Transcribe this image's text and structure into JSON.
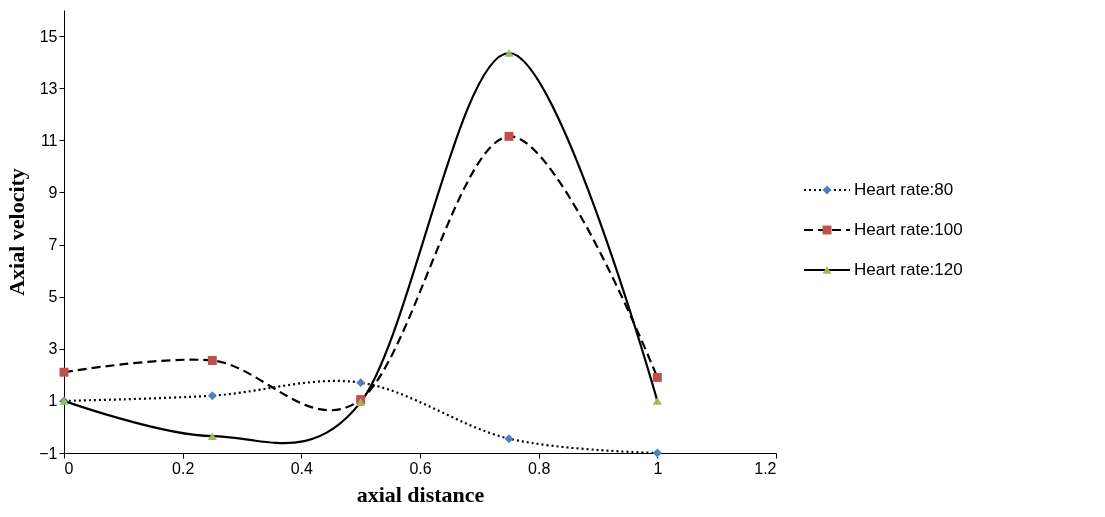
{
  "chart_data": {
    "type": "line",
    "xlabel": "axial distance",
    "ylabel": "Axial velocity",
    "x": [
      0,
      0.25,
      0.5,
      0.75,
      1
    ],
    "series": [
      {
        "name": "Heart rate:80",
        "color": "#4f81bd",
        "marker": "diamond",
        "line_style": "dotted",
        "values": [
          1.0,
          1.2,
          1.7,
          -0.45,
          -1.0
        ]
      },
      {
        "name": "Heart rate:100",
        "color": "#c0504d",
        "marker": "square",
        "line_style": "dashed",
        "values": [
          2.1,
          2.55,
          1.05,
          11.15,
          1.9
        ]
      },
      {
        "name": "Heart rate:120",
        "color": "#9bbb59",
        "marker": "triangle",
        "line_style": "solid",
        "values": [
          1.0,
          -0.35,
          0.95,
          14.35,
          1.0
        ]
      }
    ],
    "xlim": [
      0,
      1.2
    ],
    "xticks": [
      0,
      0.2,
      0.4,
      0.6,
      0.8,
      1,
      1.2
    ],
    "ylim": [
      -1,
      16
    ],
    "yticks": [
      -1,
      1,
      3,
      5,
      7,
      9,
      11,
      13,
      15
    ],
    "grid": false,
    "legend": "right"
  }
}
